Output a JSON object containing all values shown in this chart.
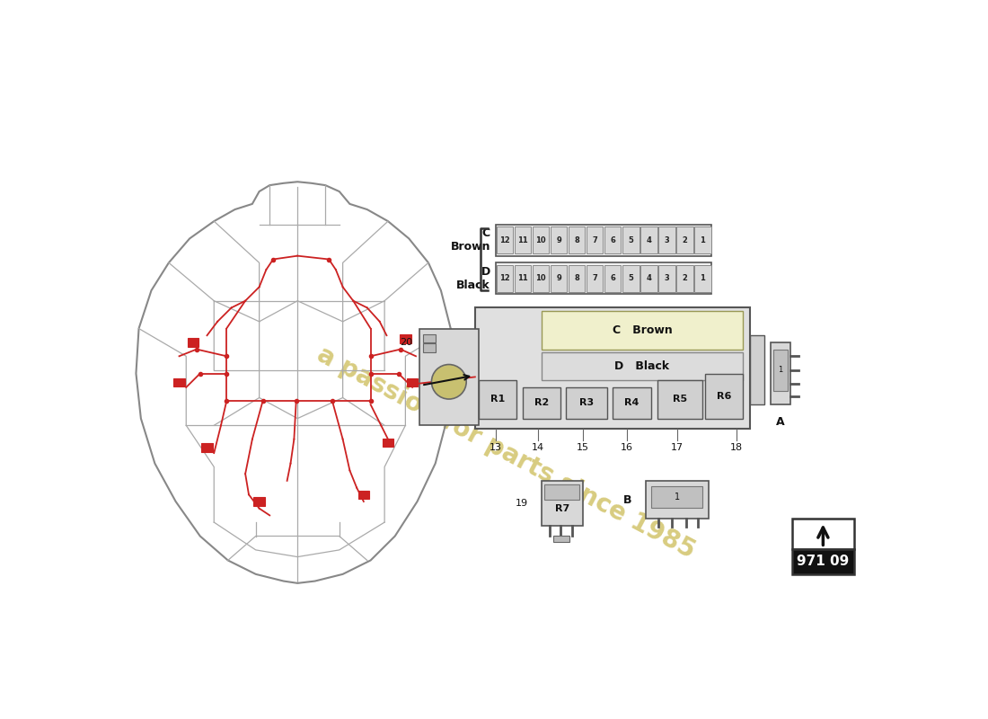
{
  "bg_color": "#ffffff",
  "watermark_text": "a passion for parts since 1985",
  "watermark_color": "#d8cc80",
  "diagram_number": "971 09",
  "fuse_C_numbers": [
    12,
    11,
    10,
    9,
    8,
    7,
    6,
    5,
    4,
    3,
    2,
    1
  ],
  "fuse_D_numbers": [
    12,
    11,
    10,
    9,
    8,
    7,
    6,
    5,
    4,
    3,
    2,
    1
  ],
  "relay_labels": [
    "R1",
    "R2",
    "R3",
    "R4",
    "R5",
    "R6"
  ],
  "c_brown_text": "C   Brown",
  "d_black_text": "D   Black",
  "wiring_color": "#cc2222",
  "line_color": "#888888",
  "box_edge_color": "#555555",
  "box_face_color": "#e8e8e8",
  "inner_C_color": "#f0f0cc",
  "dark_text": "#111111"
}
